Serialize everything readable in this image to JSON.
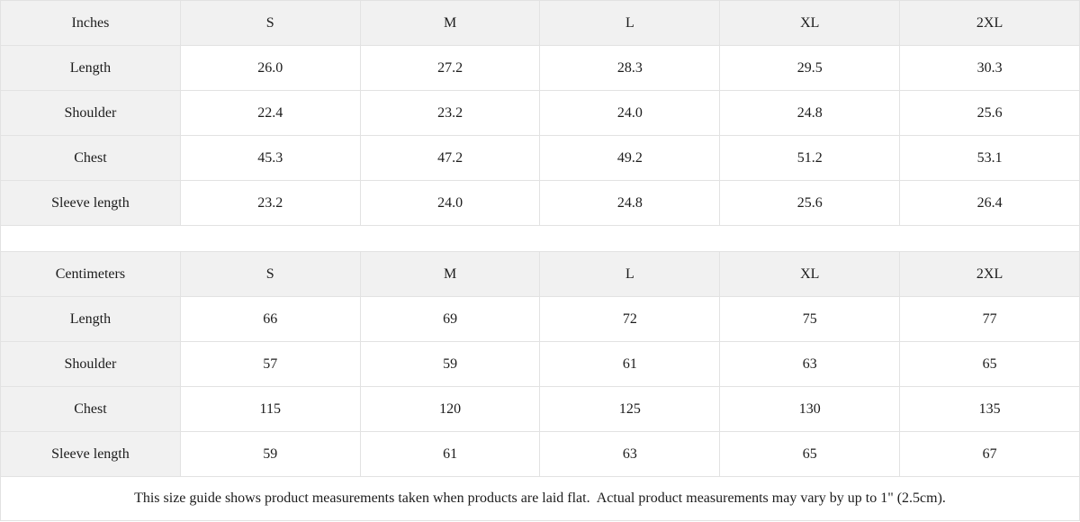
{
  "page": {
    "background": "#ffffff",
    "border_color": "#e2e2e2",
    "shaded_cell_color": "#f1f1f1",
    "text_color": "#1c1c1c"
  },
  "size_guide": {
    "tables": [
      {
        "unit_label": "Inches",
        "columns": [
          "S",
          "M",
          "L",
          "XL",
          "2XL"
        ],
        "rows": [
          {
            "label": "Length",
            "values": [
              "26.0",
              "27.2",
              "28.3",
              "29.5",
              "30.3"
            ]
          },
          {
            "label": "Shoulder",
            "values": [
              "22.4",
              "23.2",
              "24.0",
              "24.8",
              "25.6"
            ]
          },
          {
            "label": "Chest",
            "values": [
              "45.3",
              "47.2",
              "49.2",
              "51.2",
              "53.1"
            ]
          },
          {
            "label": "Sleeve length",
            "values": [
              "23.2",
              "24.0",
              "24.8",
              "25.6",
              "26.4"
            ]
          }
        ]
      },
      {
        "unit_label": "Centimeters",
        "columns": [
          "S",
          "M",
          "L",
          "XL",
          "2XL"
        ],
        "rows": [
          {
            "label": "Length",
            "values": [
              "66",
              "69",
              "72",
              "75",
              "77"
            ]
          },
          {
            "label": "Shoulder",
            "values": [
              "57",
              "59",
              "61",
              "63",
              "65"
            ]
          },
          {
            "label": "Chest",
            "values": [
              "115",
              "120",
              "125",
              "130",
              "135"
            ]
          },
          {
            "label": "Sleeve length",
            "values": [
              "59",
              "61",
              "63",
              "65",
              "67"
            ]
          }
        ]
      }
    ],
    "footnote": "This size guide shows product measurements taken when products are laid flat.  Actual product measurements may vary by up to 1\" (2.5cm)."
  }
}
